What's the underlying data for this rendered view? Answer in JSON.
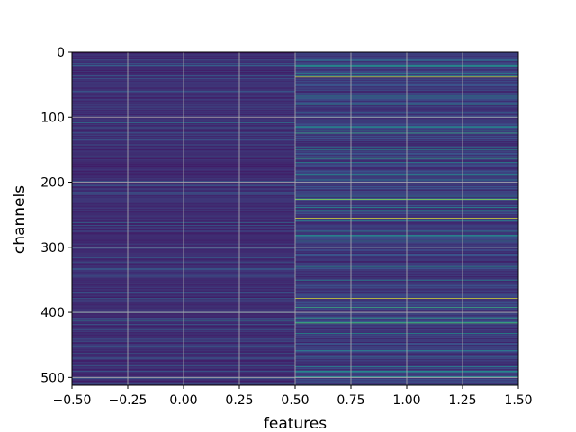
{
  "chart_data": {
    "type": "heatmap",
    "title": "",
    "xlabel": "features",
    "ylabel": "channels",
    "xlim": [
      -0.5,
      1.5
    ],
    "ylim": [
      512,
      0
    ],
    "x_ticks": [
      -0.5,
      -0.25,
      0.0,
      0.25,
      0.5,
      0.75,
      1.0,
      1.25,
      1.5
    ],
    "x_tick_labels": [
      "−0.50",
      "−0.25",
      "0.00",
      "0.25",
      "0.50",
      "0.75",
      "1.00",
      "1.25",
      "1.50"
    ],
    "y_ticks": [
      0,
      100,
      200,
      300,
      400,
      500
    ],
    "y_tick_labels": [
      "0",
      "100",
      "200",
      "300",
      "400",
      "500"
    ],
    "grid": true,
    "colormap": "viridis",
    "n_channels": 512,
    "columns": [
      {
        "feature": 0,
        "base_value": 0.08,
        "highlights": [
          {
            "channel": 60,
            "value": 0.3
          },
          {
            "channel": 108,
            "value": 0.38
          },
          {
            "channel": 160,
            "value": 0.3
          },
          {
            "channel": 205,
            "value": 0.28
          },
          {
            "channel": 262,
            "value": 0.35
          },
          {
            "channel": 300,
            "value": 0.28
          },
          {
            "channel": 344,
            "value": 0.3
          },
          {
            "channel": 400,
            "value": 0.32
          },
          {
            "channel": 412,
            "value": 0.45
          },
          {
            "channel": 470,
            "value": 0.3
          }
        ]
      },
      {
        "feature": 1,
        "base_value": 0.1,
        "highlights": [
          {
            "channel": 38,
            "value": 0.92
          },
          {
            "channel": 70,
            "value": 0.45
          },
          {
            "channel": 124,
            "value": 0.6
          },
          {
            "channel": 150,
            "value": 0.5
          },
          {
            "channel": 163,
            "value": 0.55
          },
          {
            "channel": 187,
            "value": 0.45
          },
          {
            "channel": 226,
            "value": 0.85
          },
          {
            "channel": 238,
            "value": 0.5
          },
          {
            "channel": 255,
            "value": 0.95
          },
          {
            "channel": 330,
            "value": 0.5
          },
          {
            "channel": 350,
            "value": 0.45
          },
          {
            "channel": 378,
            "value": 0.95
          },
          {
            "channel": 392,
            "value": 0.6
          },
          {
            "channel": 408,
            "value": 0.55
          },
          {
            "channel": 416,
            "value": 0.7
          },
          {
            "channel": 432,
            "value": 0.5
          },
          {
            "channel": 458,
            "value": 0.45
          },
          {
            "channel": 490,
            "value": 0.5
          }
        ]
      }
    ]
  }
}
